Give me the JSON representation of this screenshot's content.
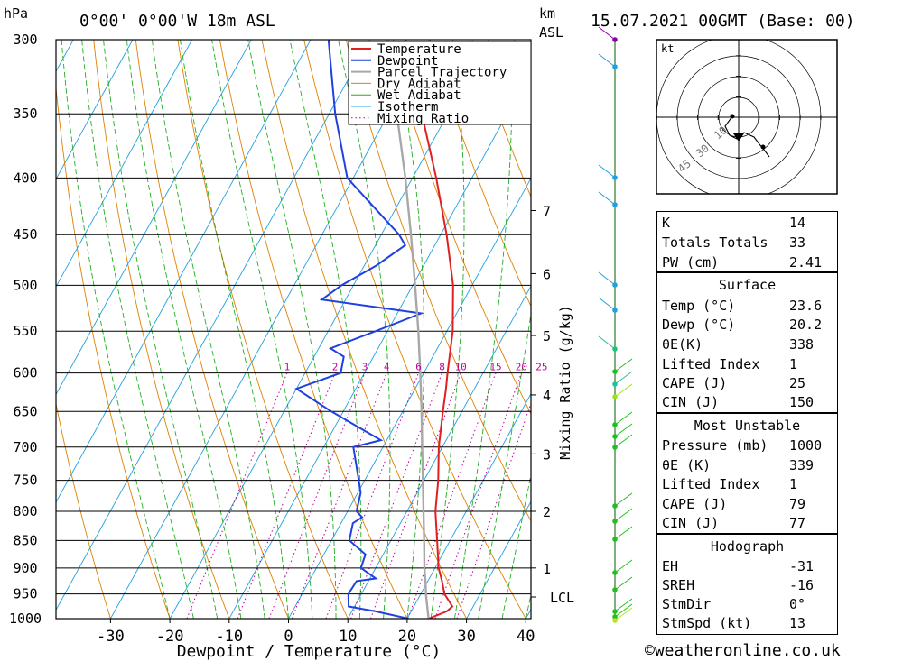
{
  "header": {
    "location": "0°00' 0°00'W 18m ASL",
    "datetime": "15.07.2021 00GMT (Base: 00)",
    "pressure_unit": "hPa",
    "height_unit_km": "km",
    "height_unit_asl": "ASL"
  },
  "chart_data": {
    "type": "line",
    "title": "",
    "xlabel": "Dewpoint / Temperature (°C)",
    "ylabel": "hPa",
    "y2label": "Mixing Ratio (g/kg)",
    "x_ticks": [
      -30,
      -20,
      -10,
      0,
      10,
      20,
      30,
      40
    ],
    "xlim": [
      -40,
      40
    ],
    "pressure_ticks": [
      300,
      350,
      400,
      450,
      500,
      550,
      600,
      650,
      700,
      750,
      800,
      850,
      900,
      950,
      1000
    ],
    "ylim": [
      1000,
      300
    ],
    "y_scale": "log",
    "km_ticks": [
      {
        "label": "1",
        "p": 900
      },
      {
        "label": "2",
        "p": 800
      },
      {
        "label": "3",
        "p": 710
      },
      {
        "label": "4",
        "p": 628
      },
      {
        "label": "5",
        "p": 555
      },
      {
        "label": "6",
        "p": 488
      },
      {
        "label": "7",
        "p": 428
      },
      {
        "label": "LCL",
        "p": 956
      }
    ],
    "mixing_ratio_labels": [
      "1",
      "2",
      "3",
      "4",
      "6",
      "8",
      "10",
      "15",
      "20",
      "25"
    ],
    "mixing_ratio_values": [
      1,
      2,
      3,
      4,
      6,
      8,
      10,
      15,
      20,
      25
    ],
    "mixing_ratio_label_p": 600,
    "legend": {
      "placement": "top-inside",
      "entries": [
        "Temperature",
        "Dewpoint",
        "Parcel Trajectory",
        "Dry Adiabat",
        "Wet Adiabat",
        "Isotherm",
        "Mixing Ratio"
      ]
    },
    "series": [
      {
        "name": "Temperature",
        "color": "#e02020",
        "points": [
          [
            1000,
            23.6
          ],
          [
            985,
            26.0
          ],
          [
            975,
            26.5
          ],
          [
            950,
            24.0
          ],
          [
            925,
            22.4
          ],
          [
            900,
            20.6
          ],
          [
            850,
            17.8
          ],
          [
            800,
            14.8
          ],
          [
            750,
            12.4
          ],
          [
            700,
            9.4
          ],
          [
            650,
            6.8
          ],
          [
            620,
            5.2
          ],
          [
            600,
            4.0
          ],
          [
            550,
            1.0
          ],
          [
            500,
            -3.2
          ],
          [
            450,
            -9.0
          ],
          [
            400,
            -16.0
          ],
          [
            350,
            -24.4
          ],
          [
            300,
            -34.0
          ]
        ]
      },
      {
        "name": "Dewpoint",
        "color": "#2040e0",
        "points": [
          [
            1000,
            20.2
          ],
          [
            985,
            14.0
          ],
          [
            975,
            9.0
          ],
          [
            950,
            7.8
          ],
          [
            925,
            8.0
          ],
          [
            920,
            11.0
          ],
          [
            900,
            7.5
          ],
          [
            875,
            7.0
          ],
          [
            850,
            3.0
          ],
          [
            820,
            2.0
          ],
          [
            810,
            3.0
          ],
          [
            800,
            1.5
          ],
          [
            770,
            0.5
          ],
          [
            750,
            -1.0
          ],
          [
            700,
            -5.0
          ],
          [
            690,
            -1.0
          ],
          [
            650,
            -12.0
          ],
          [
            620,
            -20.0
          ],
          [
            600,
            -14.0
          ],
          [
            580,
            -15.0
          ],
          [
            570,
            -18.0
          ],
          [
            550,
            -12.0
          ],
          [
            530,
            -6.0
          ],
          [
            515,
            -24.0
          ],
          [
            500,
            -22.0
          ],
          [
            480,
            -18.0
          ],
          [
            460,
            -15.0
          ],
          [
            450,
            -17.0
          ],
          [
            400,
            -31.0
          ],
          [
            350,
            -39.0
          ],
          [
            300,
            -47.0
          ]
        ]
      },
      {
        "name": "Parcel Trajectory",
        "color": "#a8a8a8",
        "points": [
          [
            1000,
            23.6
          ],
          [
            956,
            21.2
          ],
          [
            925,
            19.6
          ],
          [
            900,
            18.2
          ],
          [
            850,
            15.6
          ],
          [
            800,
            12.8
          ],
          [
            750,
            9.8
          ],
          [
            700,
            6.6
          ],
          [
            650,
            3.2
          ],
          [
            600,
            -0.6
          ],
          [
            550,
            -4.8
          ],
          [
            500,
            -9.6
          ],
          [
            450,
            -15.0
          ],
          [
            400,
            -21.2
          ],
          [
            350,
            -28.6
          ],
          [
            300,
            -37.0
          ]
        ]
      }
    ]
  },
  "hodograph": {
    "unit_label": "kt",
    "ring_labels": [
      "10",
      "30",
      "45"
    ]
  },
  "indices": [
    {
      "label": "K",
      "value": "14"
    },
    {
      "label": "Totals Totals",
      "value": "33"
    },
    {
      "label": "PW (cm)",
      "value": "2.41"
    }
  ],
  "surface": {
    "title": "Surface",
    "rows": [
      {
        "label": "Temp (°C)",
        "value": "23.6"
      },
      {
        "label": "Dewp (°C)",
        "value": "20.2"
      },
      {
        "label": "θE(K)",
        "value": "338"
      },
      {
        "label": "Lifted Index",
        "value": "1"
      },
      {
        "label": "CAPE (J)",
        "value": "25"
      },
      {
        "label": "CIN (J)",
        "value": "150"
      }
    ]
  },
  "most_unstable": {
    "title": "Most Unstable",
    "rows": [
      {
        "label": "Pressure (mb)",
        "value": "1000"
      },
      {
        "label": "θE (K)",
        "value": "339"
      },
      {
        "label": "Lifted Index",
        "value": "1"
      },
      {
        "label": "CAPE (J)",
        "value": "79"
      },
      {
        "label": "CIN (J)",
        "value": "77"
      }
    ]
  },
  "hodograph_table": {
    "title": "Hodograph",
    "rows": [
      {
        "label": "EH",
        "value": "-31"
      },
      {
        "label": "SREH",
        "value": "-16"
      },
      {
        "label": "StmDir",
        "value": "0°"
      },
      {
        "label": "StmSpd (kt)",
        "value": "13"
      }
    ]
  },
  "footer": "©weatheronline.co.uk",
  "colors": {
    "temperature": "#e02020",
    "dewpoint": "#2040e0",
    "parcel": "#a8a8a8",
    "dry_adiabat": "#e08000",
    "wet_adiabat": "#20b020",
    "isotherm": "#20a0e0",
    "mixing_ratio": "#c000a0"
  }
}
